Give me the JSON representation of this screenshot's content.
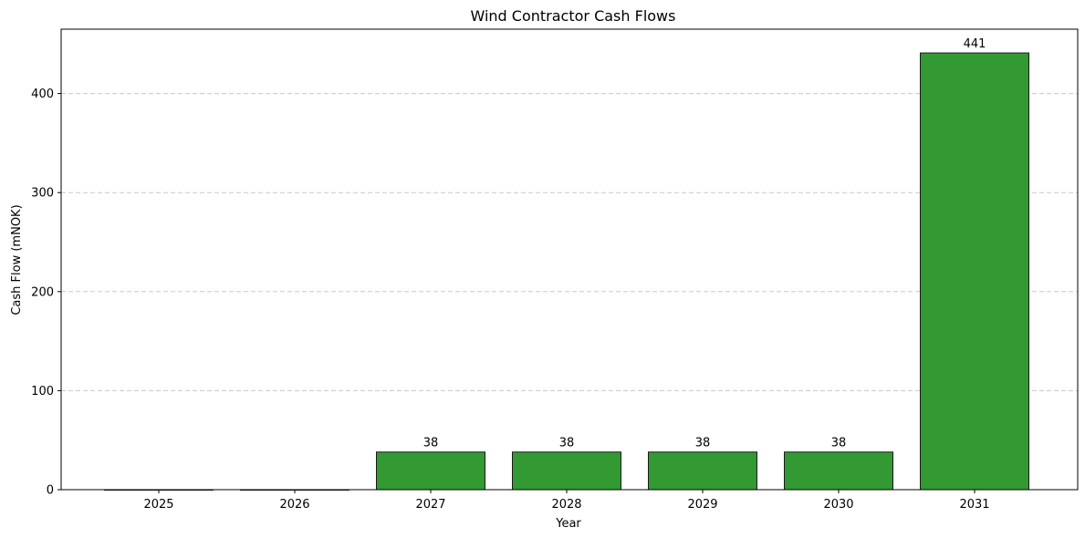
{
  "chart_data": {
    "type": "bar",
    "title": "Wind Contractor Cash Flows",
    "xlabel": "Year",
    "ylabel": "Cash Flow (mNOK)",
    "categories": [
      "2025",
      "2026",
      "2027",
      "2028",
      "2029",
      "2030",
      "2031"
    ],
    "values": [
      0,
      0,
      38,
      38,
      38,
      38,
      441
    ],
    "data_labels": [
      "",
      "",
      "38",
      "38",
      "38",
      "38",
      "441"
    ],
    "ylim": [
      0,
      465
    ],
    "yticks": [
      0,
      100,
      200,
      300,
      400
    ],
    "grid": "y-dashed",
    "bar_color": "#339933",
    "bar_edge_color": "#1a1a1a",
    "grid_color": "#c8c8c8"
  }
}
